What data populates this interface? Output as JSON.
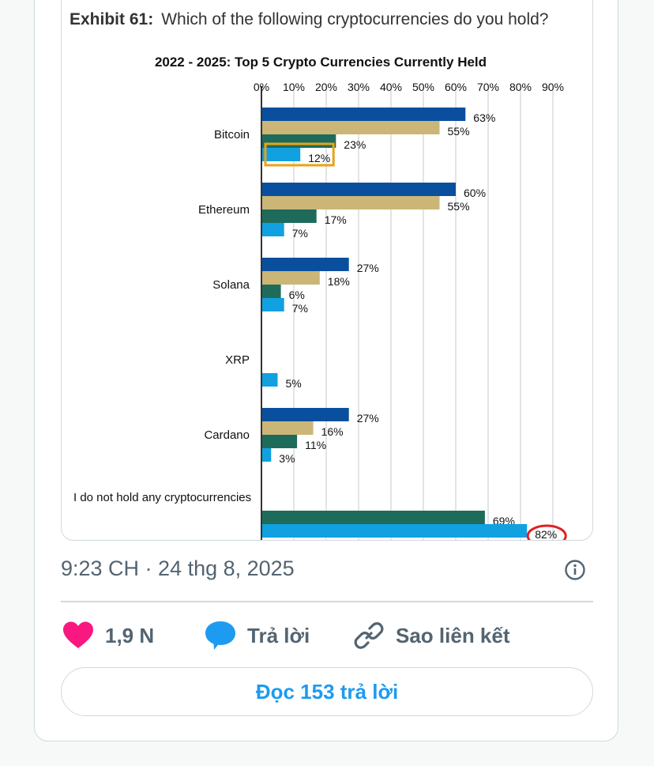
{
  "exhibit": {
    "label": "Exhibit 61:",
    "question": "Which of the following cryptocurrencies do you hold?"
  },
  "chart_data": {
    "type": "bar",
    "orientation": "horizontal",
    "title": "2022 - 2025: Top 5 Crypto Currencies Currently Held",
    "xlim": [
      0,
      90
    ],
    "x_ticks": [
      "0%",
      "10%",
      "20%",
      "30%",
      "40%",
      "50%",
      "60%",
      "70%",
      "80%",
      "90%"
    ],
    "grid": true,
    "categories": [
      "Bitcoin",
      "Ethereum",
      "Solana",
      "XRP",
      "Cardano",
      "I do not hold any cryptocurrencies"
    ],
    "series": [
      {
        "color": "#0a4f9e",
        "values": [
          63,
          60,
          27,
          null,
          27,
          null
        ]
      },
      {
        "color": "#cbb677",
        "values": [
          55,
          55,
          18,
          null,
          16,
          null
        ]
      },
      {
        "color": "#1e6b5c",
        "values": [
          23,
          17,
          6,
          null,
          11,
          69
        ]
      },
      {
        "color": "#11a0e0",
        "values": [
          12,
          7,
          7,
          5,
          3,
          82
        ]
      }
    ],
    "value_labels": [
      [
        "63%",
        "55%",
        "23%",
        "12%"
      ],
      [
        "60%",
        "55%",
        "17%",
        "7%"
      ],
      [
        "27%",
        "18%",
        "6%",
        "7%"
      ],
      [
        null,
        null,
        null,
        "5%"
      ],
      [
        "27%",
        "16%",
        "11%",
        "3%"
      ],
      [
        null,
        null,
        "69%",
        "82%"
      ]
    ],
    "annotations": [
      {
        "type": "highlight-box",
        "category": "Bitcoin",
        "series_index": 3,
        "color": "#e8a317"
      },
      {
        "type": "circle",
        "category": "I do not hold any cryptocurrencies",
        "series_index": 3,
        "color": "#e02020"
      }
    ]
  },
  "tweet": {
    "timestamp": "9:23 CH · 24 thg 8, 2025",
    "likes": "1,9 N",
    "reply_label": "Trả lời",
    "copy_link_label": "Sao liên kết",
    "read_replies": "Đọc 153 trả lời"
  },
  "icons": {
    "like": "heart-icon",
    "reply": "speech-bubble-icon",
    "link": "link-icon",
    "info": "info-icon"
  },
  "colors": {
    "like": "#f91880",
    "reply": "#1d9bf0",
    "muted": "#536471",
    "accent": "#1d9bf0"
  }
}
